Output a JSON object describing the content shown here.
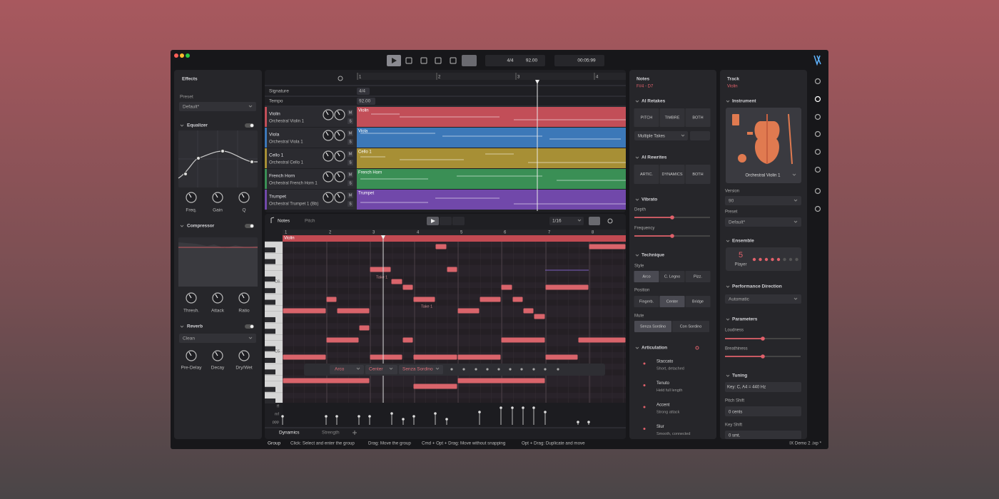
{
  "toolbar": {
    "time_signature": "4/4",
    "tempo": "92.00",
    "time": "00:05:99"
  },
  "effects": {
    "title": "Effects",
    "preset_label": "Preset",
    "preset": "Default*",
    "equalizer": {
      "title": "Equalizer",
      "knobs": [
        "Freq.",
        "Gain",
        "Q"
      ]
    },
    "compressor": {
      "title": "Compressor",
      "knobs": [
        "Thresh.",
        "Attack",
        "Ratio"
      ]
    },
    "reverb": {
      "title": "Reverb",
      "preset": "Clean",
      "knobs": [
        "Pre-Delay",
        "Decay",
        "Dry/Wet"
      ]
    }
  },
  "arrangement": {
    "ruler": [
      "1",
      "2",
      "3",
      "4"
    ],
    "signature_label": "Signature",
    "signature": "4/4",
    "tempo_label": "Tempo",
    "tempo": "92.00",
    "mute": "M",
    "solo": "S",
    "tracks": [
      {
        "name": "Violin",
        "instrument": "Orchestral Violin 1",
        "clip": "Violin"
      },
      {
        "name": "Viola",
        "instrument": "Orchestral Viola 1",
        "clip": "Viola"
      },
      {
        "name": "Cello 1",
        "instrument": "Orchestral Cello 1",
        "clip": "Cello 1"
      },
      {
        "name": "French Horn",
        "instrument": "Orchestral French Horn 1",
        "clip": "French Horn"
      },
      {
        "name": "Trumpet",
        "instrument": "Orchestral Trumpet 1 (Bb)",
        "clip": "Trumpet"
      }
    ]
  },
  "editor": {
    "tabs": [
      "Notes",
      "Pitch"
    ],
    "grid": "1/16",
    "ruler": [
      "1",
      "2",
      "3",
      "4",
      "5",
      "6",
      "7",
      "8"
    ],
    "clip": "Violin",
    "takes": [
      "Take 2",
      "Take 1",
      "Take 1"
    ],
    "keys": [
      "C6",
      "C5"
    ],
    "note_toolbar": [
      "Arco",
      "Center",
      "Senza Sordino"
    ],
    "dynamics_levels": [
      "ff",
      "mf",
      "ppp"
    ],
    "bottom_tabs": [
      "Dynamics",
      "Strength"
    ]
  },
  "notes_panel": {
    "title": "Notes",
    "range": "F#4 - D7",
    "ai_retakes": {
      "title": "AI Retakes",
      "buttons": [
        "PITCH",
        "TIMBRE",
        "BOTH"
      ],
      "mode": "Multiple Takes"
    },
    "ai_rewrites": {
      "title": "AI Rewrites",
      "buttons": [
        "ARTIC.",
        "DYNAMICS",
        "BOTH"
      ]
    },
    "vibrato": {
      "title": "Vibrato",
      "depth": "Depth",
      "frequency": "Frequency"
    },
    "technique": {
      "title": "Technique",
      "style_label": "Style",
      "styles": [
        "Arco",
        "C. Legno",
        "Pizz."
      ],
      "position_label": "Position",
      "positions": [
        "Fingerb.",
        "Center",
        "Bridge"
      ],
      "mute_label": "Mute",
      "mutes": [
        "Senza Sordino",
        "Con Sordino"
      ]
    },
    "articulation": {
      "title": "Articulation",
      "items": [
        {
          "name": "Staccato",
          "desc": "Short, detached"
        },
        {
          "name": "Tenuto",
          "desc": "Held full length"
        },
        {
          "name": "Accent",
          "desc": "Strong attack"
        },
        {
          "name": "Slur",
          "desc": "Smooth, connected"
        }
      ]
    }
  },
  "track_panel": {
    "title": "Track",
    "track": "Violin",
    "instrument_title": "Instrument",
    "instrument": "Orchestral Violin 1",
    "version_label": "Version",
    "version": "90",
    "preset_label": "Preset",
    "preset": "Default*",
    "ensemble_title": "Ensemble",
    "players": "5",
    "players_label": "Player",
    "direction_title": "Performance Direction",
    "direction": "Automatic",
    "parameters_title": "Parameters",
    "loudness": "Loudness",
    "breathiness": "Breathiness",
    "tuning_title": "Tuning",
    "key": "Key: C, A4 = 440 Hz",
    "pitch_shift_label": "Pitch Shift",
    "pitch_shift": "0 cents",
    "key_shift_label": "Key Shift",
    "key_shift": "0 smt."
  },
  "status_bar": {
    "mode": "Group",
    "hints": [
      "Click: Select and enter the group",
      "Drag: Move the group",
      "Cmd + Opt + Drag: Move without snapping",
      "Opt + Drag: Duplicate and move"
    ],
    "file": "IX Demo 2 .ixp *"
  }
}
